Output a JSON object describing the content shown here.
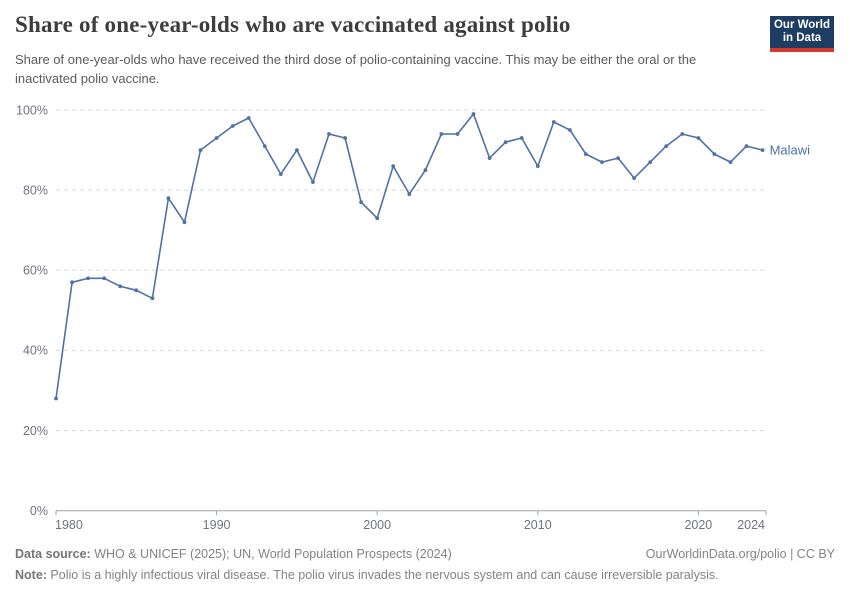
{
  "chart_data": {
    "type": "line",
    "title": "Share of one-year-olds who are vaccinated against polio",
    "subtitle": "Share of one-year-olds who have received the third dose of polio-containing vaccine. This may be either the oral or the inactivated polio vaccine.",
    "x": [
      1980,
      1981,
      1982,
      1983,
      1984,
      1985,
      1986,
      1987,
      1988,
      1989,
      1990,
      1991,
      1992,
      1993,
      1994,
      1995,
      1996,
      1997,
      1998,
      1999,
      2000,
      2001,
      2002,
      2003,
      2004,
      2005,
      2006,
      2007,
      2008,
      2009,
      2010,
      2011,
      2012,
      2013,
      2014,
      2015,
      2016,
      2017,
      2018,
      2019,
      2020,
      2021,
      2022,
      2023,
      2024
    ],
    "series": [
      {
        "name": "Malawi",
        "values": [
          28,
          57,
          58,
          58,
          56,
          55,
          53,
          78,
          72,
          90,
          93,
          96,
          98,
          91,
          84,
          90,
          82,
          94,
          93,
          77,
          73,
          86,
          79,
          85,
          94,
          94,
          99,
          88,
          92,
          93,
          86,
          97,
          95,
          89,
          87,
          88,
          83,
          87,
          91,
          94,
          93,
          89,
          87,
          91,
          90
        ]
      }
    ],
    "xlabel": "",
    "ylabel": "",
    "ylim": [
      0,
      100
    ],
    "yticks": [
      0,
      20,
      40,
      60,
      80,
      100
    ],
    "ytick_suffix": "%",
    "xticks": [
      1980,
      1990,
      2000,
      2010,
      2020,
      2024
    ],
    "grid": "horizontal-dashed",
    "legend": "inline-end-label"
  },
  "logo": {
    "line1": "Our World",
    "line2": "in Data"
  },
  "footer": {
    "datasource_label": "Data source:",
    "datasource_text": " WHO & UNICEF (2025); UN, World Population Prospects (2024)",
    "link_text": "OurWorldinData.org/polio | CC BY",
    "note_label": "Note:",
    "note_text": " Polio is a highly infectious viral disease. The polio virus invades the nervous system and can cause irreversible paralysis."
  },
  "colors": {
    "line": "#4f71a6",
    "grid": "#dadada",
    "axis": "#a3a3a3",
    "tick_text": "#70757d",
    "logo_bg": "#1d3d63",
    "logo_stripe": "#d7382d"
  }
}
